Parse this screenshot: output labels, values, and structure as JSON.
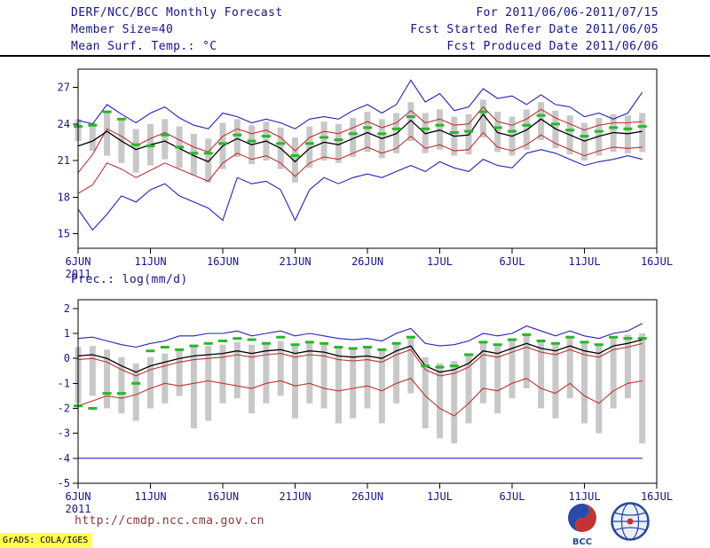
{
  "header": {
    "title": "DERF/NCC/BCC Monthly Forecast",
    "for_range": "For 2011/06/06-2011/07/15",
    "member_size": "Member Size=40",
    "refer_date": "Fcst Started Refer Date 2011/06/05",
    "produced_date": "Fcst Produced Date 2011/06/06"
  },
  "footer": {
    "url": "http://cmdp.ncc.cma.gov.cn",
    "grads": "GrADS: COLA/IGES",
    "logos": [
      {
        "name": "bcc-logo",
        "label": "BCC"
      },
      {
        "name": "ncc-cma-logo",
        "label": ""
      }
    ]
  },
  "colors": {
    "text_navy": "#15158a",
    "line_blue": "#2222bb",
    "line_red": "#c03030",
    "line_black": "#000000",
    "obs_green": "#27b827",
    "spread_gray": "#c8c8c8",
    "url_maroon": "#8b3838",
    "stamp_yellow": "#ffff52"
  },
  "chart_data": [
    {
      "type": "line",
      "panel": "temperature",
      "title": "Mean Surf. Temp.: °C",
      "ylim": [
        13.8,
        28.5
      ],
      "yticks": [
        15,
        18,
        21,
        24,
        27
      ],
      "x_range": [
        0,
        40
      ],
      "xticks": [
        {
          "pos": 0,
          "label": "6JUN",
          "sub": "2011"
        },
        {
          "pos": 5,
          "label": "11JUN"
        },
        {
          "pos": 10,
          "label": "16JUN"
        },
        {
          "pos": 15,
          "label": "21JUN"
        },
        {
          "pos": 20,
          "label": "26JUN"
        },
        {
          "pos": 25,
          "label": "1JUL"
        },
        {
          "pos": 30,
          "label": "6JUL"
        },
        {
          "pos": 35,
          "label": "11JUL"
        },
        {
          "pos": 40,
          "label": "16JUL"
        }
      ],
      "box": {
        "color": "#c8c8c8",
        "top": [
          24.4,
          24.1,
          25.0,
          24.3,
          23.6,
          24.0,
          24.4,
          23.8,
          23.2,
          22.8,
          24.1,
          24.4,
          23.9,
          24.2,
          23.7,
          22.9,
          23.8,
          24.2,
          24.0,
          24.5,
          25.0,
          24.4,
          24.9,
          25.8,
          24.9,
          25.2,
          24.6,
          24.8,
          26.0,
          25.0,
          24.6,
          25.2,
          25.8,
          25.1,
          24.7,
          24.1,
          24.5,
          24.8,
          24.7,
          24.9
        ],
        "bottom": [
          22.6,
          21.8,
          21.4,
          20.8,
          20.0,
          20.6,
          21.1,
          20.4,
          19.8,
          19.2,
          20.3,
          21.3,
          20.7,
          21.0,
          20.3,
          19.2,
          20.4,
          21.0,
          20.8,
          21.3,
          21.7,
          21.2,
          21.6,
          22.6,
          21.6,
          21.9,
          21.4,
          21.5,
          22.9,
          21.7,
          21.4,
          21.9,
          22.7,
          22.0,
          21.5,
          21.0,
          21.4,
          21.7,
          21.6,
          21.7
        ]
      },
      "series": [
        {
          "name": "ensemble-max",
          "style": "line",
          "color": "#2222bb",
          "values": [
            24.3,
            24.0,
            25.6,
            24.8,
            24.1,
            24.9,
            25.4,
            24.5,
            23.9,
            23.6,
            24.9,
            24.6,
            24.1,
            24.4,
            24.1,
            23.6,
            24.4,
            24.6,
            24.4,
            25.1,
            25.6,
            24.9,
            25.6,
            27.6,
            25.8,
            26.5,
            25.1,
            25.4,
            26.9,
            26.1,
            26.3,
            25.6,
            26.4,
            25.6,
            25.4,
            24.6,
            24.9,
            24.4,
            24.9,
            26.6
          ]
        },
        {
          "name": "ensemble-min",
          "style": "line",
          "color": "#2222bb",
          "values": [
            17.0,
            15.3,
            16.6,
            18.1,
            17.6,
            18.6,
            19.1,
            18.1,
            17.6,
            17.1,
            16.1,
            19.6,
            19.1,
            19.3,
            18.6,
            16.1,
            18.6,
            19.6,
            19.1,
            19.6,
            19.9,
            19.6,
            20.1,
            20.6,
            20.1,
            20.9,
            20.4,
            20.1,
            21.1,
            20.6,
            20.4,
            21.6,
            21.9,
            21.6,
            21.1,
            20.6,
            20.9,
            21.1,
            21.4,
            21.1
          ]
        },
        {
          "name": "upper-quartile-red",
          "style": "line",
          "color": "#c03030",
          "values": [
            20.0,
            21.5,
            23.6,
            23.0,
            22.2,
            22.8,
            23.3,
            22.7,
            22.1,
            21.7,
            23.0,
            23.6,
            23.2,
            23.5,
            22.9,
            21.8,
            22.9,
            23.4,
            23.2,
            23.7,
            24.2,
            23.7,
            24.1,
            25.1,
            24.1,
            24.4,
            23.9,
            24.0,
            25.4,
            24.2,
            23.9,
            24.4,
            25.2,
            24.5,
            24.0,
            23.5,
            23.9,
            24.1,
            24.1,
            24.2
          ]
        },
        {
          "name": "lower-quartile-red",
          "style": "line",
          "color": "#c03030",
          "values": [
            18.3,
            19.0,
            20.8,
            20.3,
            19.6,
            20.2,
            20.8,
            20.3,
            19.8,
            19.3,
            20.8,
            21.6,
            21.1,
            21.4,
            20.8,
            19.7,
            20.8,
            21.3,
            21.1,
            21.6,
            22.1,
            21.6,
            22.0,
            23.0,
            22.0,
            22.3,
            21.8,
            21.9,
            23.3,
            22.1,
            21.8,
            22.3,
            23.1,
            22.4,
            21.9,
            21.4,
            21.8,
            22.1,
            22.0,
            22.1
          ]
        },
        {
          "name": "ensemble-mean",
          "style": "line",
          "color": "#000000",
          "values": [
            22.2,
            22.6,
            23.4,
            22.6,
            21.9,
            22.3,
            22.6,
            22.0,
            21.4,
            20.9,
            22.2,
            22.8,
            22.3,
            22.6,
            22.0,
            20.9,
            22.0,
            22.5,
            22.3,
            22.8,
            23.3,
            22.8,
            23.2,
            24.3,
            23.2,
            23.5,
            23.0,
            23.1,
            24.8,
            23.3,
            23.0,
            23.5,
            24.4,
            23.6,
            23.1,
            22.6,
            23.0,
            23.3,
            23.2,
            23.4
          ]
        },
        {
          "name": "observation",
          "style": "dash",
          "color": "#27b827",
          "values": [
            23.8,
            23.9,
            25.0,
            24.4,
            22.3,
            22.2,
            23.1,
            22.1,
            21.6,
            21.6,
            22.4,
            23.1,
            22.6,
            23.0,
            22.4,
            21.4,
            22.4,
            22.9,
            22.7,
            23.2,
            23.7,
            23.2,
            23.6,
            24.6,
            23.6,
            23.9,
            23.3,
            23.4,
            25.0,
            23.7,
            23.4,
            23.9,
            24.7,
            24.0,
            23.5,
            23.0,
            23.4,
            23.7,
            23.6,
            23.8
          ]
        }
      ]
    },
    {
      "type": "line",
      "panel": "precipitation",
      "title": "Prec.: log(mm/d)",
      "ylim": [
        -5,
        2.35
      ],
      "yticks": [
        -5,
        -4,
        -3,
        -2,
        -1,
        0,
        1,
        2
      ],
      "x_range": [
        0,
        40
      ],
      "xticks": [
        {
          "pos": 0,
          "label": "6JUN",
          "sub": "2011"
        },
        {
          "pos": 5,
          "label": "11JUN"
        },
        {
          "pos": 10,
          "label": "16JUN"
        },
        {
          "pos": 15,
          "label": "21JUN"
        },
        {
          "pos": 20,
          "label": "26JUN"
        },
        {
          "pos": 25,
          "label": "1JUL"
        },
        {
          "pos": 30,
          "label": "6JUL"
        },
        {
          "pos": 35,
          "label": "11JUL"
        },
        {
          "pos": 40,
          "label": "16JUL"
        }
      ],
      "box": {
        "color": "#c8c8c8",
        "top": [
          0.45,
          0.5,
          0.35,
          0.05,
          -0.2,
          0.05,
          0.2,
          0.35,
          0.45,
          0.5,
          0.55,
          0.65,
          0.55,
          0.65,
          0.7,
          0.55,
          0.65,
          0.6,
          0.45,
          0.4,
          0.45,
          0.35,
          0.65,
          0.85,
          0.05,
          -0.2,
          -0.1,
          0.15,
          0.65,
          0.55,
          0.75,
          0.95,
          0.75,
          0.65,
          0.85,
          0.65,
          0.55,
          0.85,
          0.95,
          1.0
        ],
        "bottom": [
          -1.8,
          -1.5,
          -2.0,
          -2.2,
          -2.5,
          -2.0,
          -1.8,
          -1.5,
          -2.8,
          -2.5,
          -1.8,
          -1.6,
          -2.2,
          -1.8,
          -1.5,
          -2.4,
          -1.8,
          -2.0,
          -2.6,
          -2.4,
          -2.0,
          -2.6,
          -1.8,
          -1.4,
          -2.8,
          -3.2,
          -3.4,
          -2.6,
          -1.8,
          -2.2,
          -1.6,
          -1.2,
          -2.0,
          -2.4,
          -1.6,
          -2.6,
          -3.0,
          -2.0,
          -1.6,
          -3.4
        ]
      },
      "series": [
        {
          "name": "ensemble-max",
          "style": "line",
          "color": "#2222bb",
          "values": [
            0.8,
            0.85,
            0.7,
            0.55,
            0.45,
            0.6,
            0.7,
            0.9,
            0.9,
            1.0,
            1.0,
            1.1,
            0.9,
            1.0,
            1.1,
            0.9,
            1.0,
            0.9,
            0.8,
            0.75,
            0.8,
            0.7,
            1.0,
            1.2,
            0.6,
            0.5,
            0.55,
            0.7,
            1.0,
            0.9,
            1.0,
            1.3,
            1.1,
            0.9,
            1.1,
            0.9,
            0.8,
            1.0,
            1.1,
            1.4
          ]
        },
        {
          "name": "ensemble-min",
          "style": "line",
          "color": "#2222bb",
          "values": [
            -4,
            -4,
            -4,
            -4,
            -4,
            -4,
            -4,
            -4,
            -4,
            -4,
            -4,
            -4,
            -4,
            -4,
            -4,
            -4,
            -4,
            -4,
            -4,
            -4,
            -4,
            -4,
            -4,
            -4,
            -4,
            -4,
            -4,
            -4,
            -4,
            -4,
            -4,
            -4,
            -4,
            -4,
            -4,
            -4,
            -4,
            -4,
            -4,
            -4
          ]
        },
        {
          "name": "upper-quartile-red",
          "style": "line",
          "color": "#c03030",
          "values": [
            -0.05,
            0.0,
            -0.15,
            -0.45,
            -0.7,
            -0.45,
            -0.3,
            -0.15,
            -0.05,
            0.0,
            0.05,
            0.15,
            0.05,
            0.15,
            0.2,
            0.05,
            0.15,
            0.1,
            -0.05,
            -0.1,
            -0.05,
            -0.15,
            0.15,
            0.35,
            -0.45,
            -0.7,
            -0.6,
            -0.35,
            0.15,
            0.05,
            0.25,
            0.45,
            0.25,
            0.15,
            0.35,
            0.15,
            0.05,
            0.35,
            0.45,
            0.6
          ]
        },
        {
          "name": "lower-quartile-red",
          "style": "line",
          "color": "#c03030",
          "values": [
            -1.9,
            -1.7,
            -1.5,
            -1.6,
            -1.45,
            -1.2,
            -1.0,
            -1.1,
            -1.0,
            -0.9,
            -1.0,
            -1.1,
            -1.2,
            -1.0,
            -0.9,
            -1.1,
            -1.0,
            -1.2,
            -1.3,
            -1.2,
            -1.1,
            -1.3,
            -1.0,
            -0.8,
            -1.5,
            -2.0,
            -2.3,
            -1.8,
            -1.2,
            -1.3,
            -1.0,
            -0.8,
            -1.2,
            -1.4,
            -1.0,
            -1.5,
            -1.8,
            -1.3,
            -1.0,
            -0.9
          ]
        },
        {
          "name": "ensemble-mean",
          "style": "line",
          "color": "#000000",
          "values": [
            0.1,
            0.15,
            0.0,
            -0.3,
            -0.55,
            -0.3,
            -0.15,
            0.0,
            0.1,
            0.15,
            0.2,
            0.3,
            0.2,
            0.3,
            0.35,
            0.2,
            0.3,
            0.25,
            0.1,
            0.05,
            0.1,
            0.0,
            0.3,
            0.5,
            -0.3,
            -0.55,
            -0.45,
            -0.2,
            0.3,
            0.2,
            0.4,
            0.6,
            0.4,
            0.3,
            0.5,
            0.3,
            0.2,
            0.5,
            0.6,
            0.75
          ]
        },
        {
          "name": "observation",
          "style": "dash",
          "color": "#27b827",
          "values": [
            -1.9,
            -2.0,
            -1.4,
            -1.4,
            -1.0,
            0.3,
            0.45,
            0.35,
            0.5,
            0.6,
            0.7,
            0.8,
            0.75,
            0.6,
            0.85,
            0.55,
            0.65,
            0.6,
            0.45,
            0.4,
            0.45,
            0.35,
            0.6,
            0.85,
            -0.3,
            -0.35,
            -0.3,
            0.15,
            0.65,
            0.55,
            0.75,
            0.95,
            0.7,
            0.6,
            0.85,
            0.65,
            0.55,
            0.85,
            0.8,
            0.8
          ]
        }
      ]
    }
  ]
}
